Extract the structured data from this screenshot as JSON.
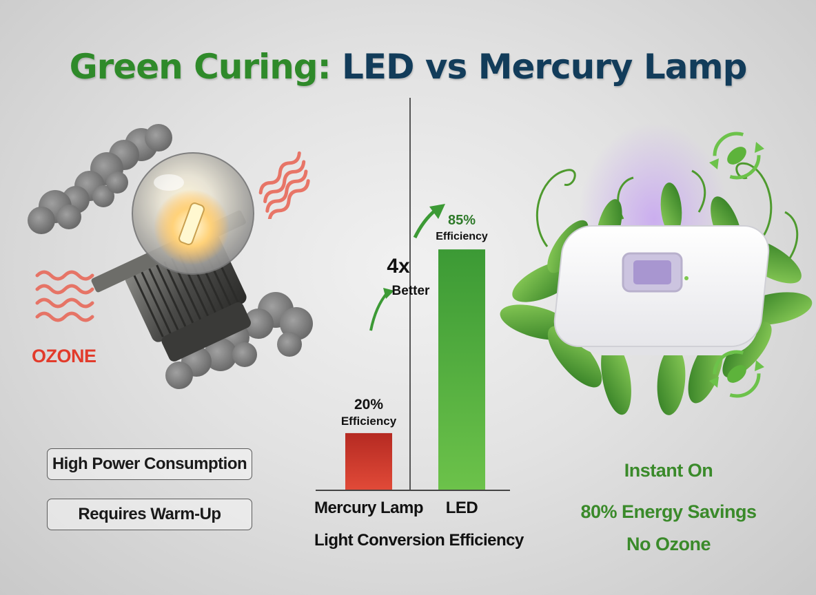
{
  "title_part1": "Green Curing:",
  "title_part2": "LED vs Mercury Lamp",
  "left": {
    "ozone_label": "OZONE",
    "drawbacks": [
      "High Power Consumption",
      "Requires Warm-Up"
    ]
  },
  "right": {
    "benefits": [
      "Instant On",
      "80% Energy Savings",
      "No Ozone"
    ]
  },
  "chart_data": {
    "type": "bar",
    "title": "Light Conversion Efficiency",
    "categories": [
      "Mercury Lamp",
      "LED"
    ],
    "values": [
      20,
      85
    ],
    "unit": "%",
    "data_labels": [
      {
        "value": "20%",
        "text": "Efficiency"
      },
      {
        "value": "85%",
        "text": "Efficiency"
      }
    ],
    "annotation": {
      "value": "4x",
      "text": "Better"
    },
    "colors": {
      "Mercury Lamp": "#c83028",
      "LED": "#4aa63a"
    },
    "ylim": [
      0,
      100
    ],
    "grid": false
  }
}
